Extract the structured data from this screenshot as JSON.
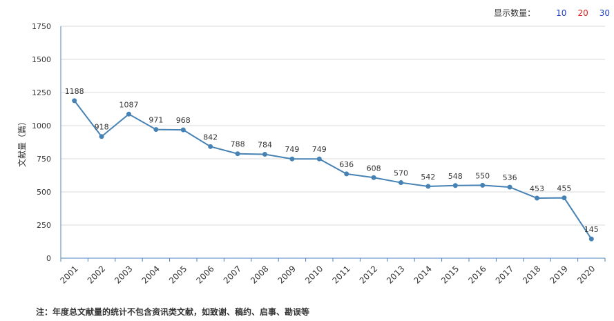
{
  "display_count": {
    "label": "显示数量：",
    "options": [
      {
        "value": "10",
        "color": "#1f3fbf"
      },
      {
        "value": "20",
        "color": "#e0201a"
      },
      {
        "value": "30",
        "color": "#1f3fbf"
      }
    ]
  },
  "chart_data": {
    "type": "line",
    "ylabel": "文献量（篇）",
    "xlabel": "",
    "ylim": [
      0,
      1750
    ],
    "yticks": [
      0,
      250,
      500,
      750,
      1000,
      1250,
      1500,
      1750
    ],
    "grid": true,
    "line_color": "#4682b4",
    "categories": [
      "2001",
      "2002",
      "2003",
      "2004",
      "2005",
      "2006",
      "2007",
      "2008",
      "2009",
      "2010",
      "2011",
      "2012",
      "2013",
      "2014",
      "2015",
      "2016",
      "2017",
      "2018",
      "2019",
      "2020"
    ],
    "values": [
      1188,
      918,
      1087,
      971,
      968,
      842,
      788,
      784,
      749,
      749,
      636,
      608,
      570,
      542,
      548,
      550,
      536,
      453,
      455,
      145
    ]
  },
  "note": "注：年度总文献量的统计不包含资讯类文献，如致谢、稿约、启事、勘误等"
}
